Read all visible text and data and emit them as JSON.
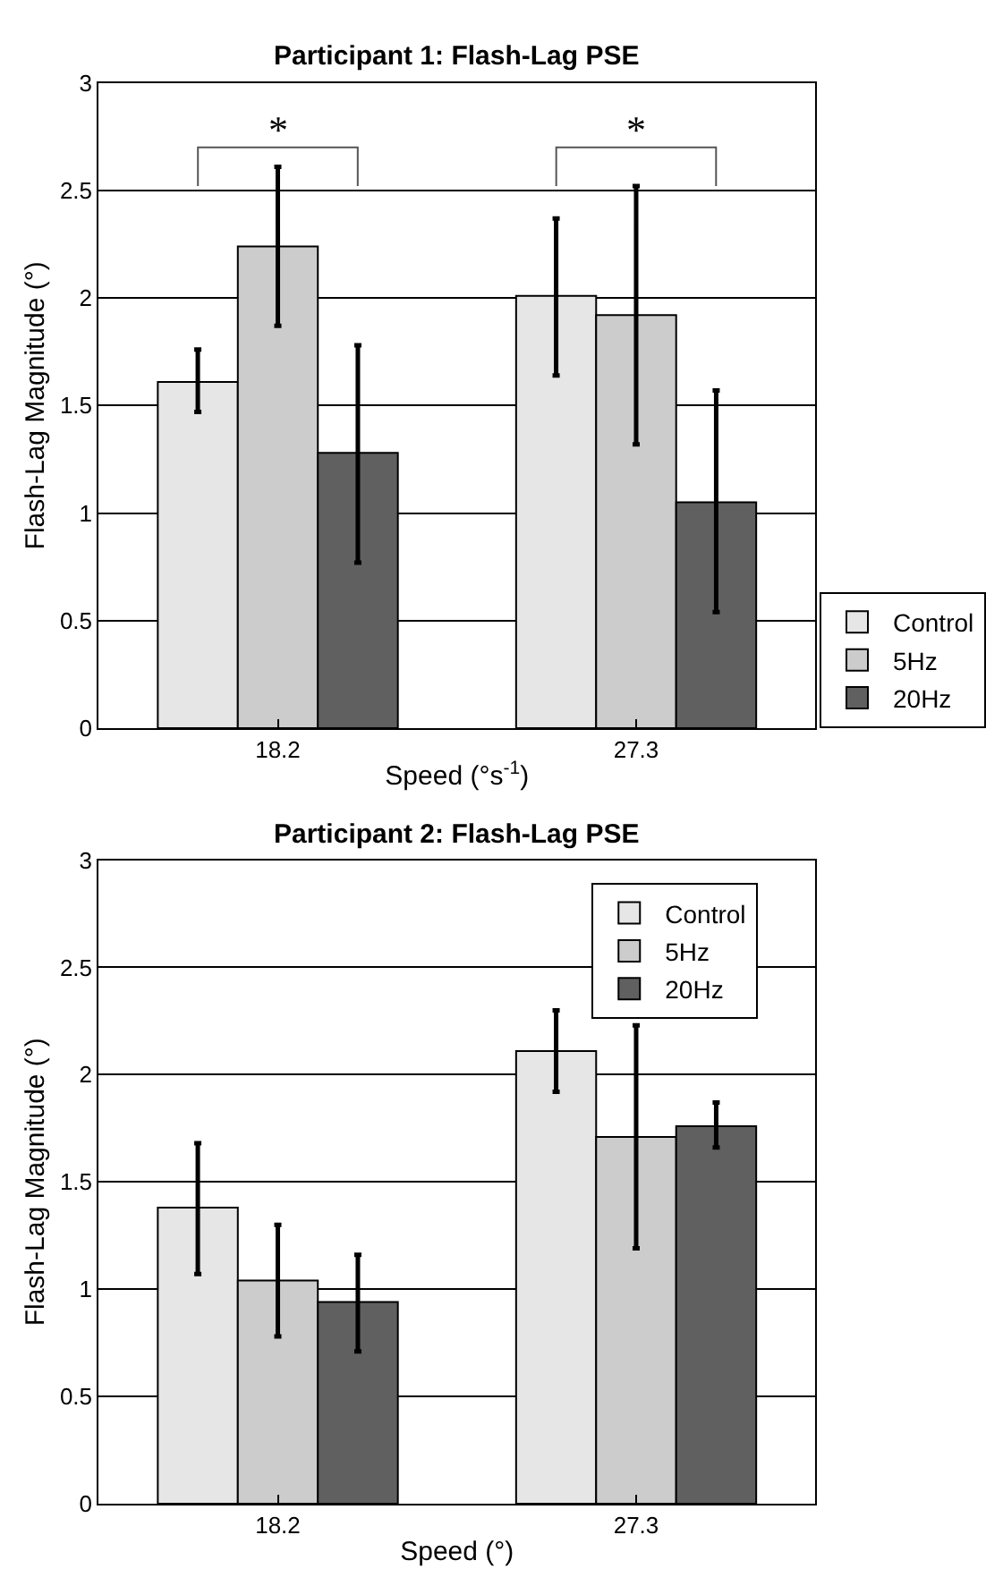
{
  "chart_data": [
    {
      "type": "bar",
      "title": "Participant 1: Flash-Lag PSE",
      "xlabel": "Speed (°s$^{-1}$)",
      "ylabel": "Flash-Lag Magnitude (°)",
      "categories": [
        "18.2",
        "27.3"
      ],
      "series": [
        {
          "name": "Control",
          "color": "#e6e6e6",
          "values": [
            1.61,
            2.01
          ],
          "errors": [
            [
              1.47,
              1.76
            ],
            [
              1.64,
              2.37
            ]
          ]
        },
        {
          "name": "5Hz",
          "color": "#cccccc",
          "values": [
            2.24,
            1.92
          ],
          "errors": [
            [
              1.87,
              2.61
            ],
            [
              1.32,
              2.52
            ]
          ]
        },
        {
          "name": "20Hz",
          "color": "#606060",
          "values": [
            1.28,
            1.05
          ],
          "errors": [
            [
              0.77,
              1.78
            ],
            [
              0.54,
              1.57
            ]
          ]
        }
      ],
      "ylim": [
        0,
        3
      ],
      "yticks": [
        0,
        0.5,
        1,
        1.5,
        2,
        2.5,
        3
      ],
      "grid": "y",
      "legend": "bottom right",
      "annotations": [
        "*",
        "*"
      ]
    },
    {
      "type": "bar",
      "title": "Participant 2: Flash-Lag PSE",
      "xlabel": "Speed (°)",
      "ylabel": "Flash-Lag Magnitude (°)",
      "categories": [
        "18.2",
        "27.3"
      ],
      "series": [
        {
          "name": "Control",
          "color": "#e6e6e6",
          "values": [
            1.38,
            2.11
          ],
          "errors": [
            [
              1.07,
              1.68
            ],
            [
              1.92,
              2.3
            ]
          ]
        },
        {
          "name": "5Hz",
          "color": "#cccccc",
          "values": [
            1.04,
            1.71
          ],
          "errors": [
            [
              0.78,
              1.3
            ],
            [
              1.19,
              2.23
            ]
          ]
        },
        {
          "name": "20Hz",
          "color": "#606060",
          "values": [
            0.94,
            1.76
          ],
          "errors": [
            [
              0.71,
              1.16
            ],
            [
              1.66,
              1.87
            ]
          ]
        }
      ],
      "ylim": [
        0,
        3
      ],
      "yticks": [
        0,
        0.5,
        1,
        1.5,
        2,
        2.5,
        3
      ],
      "grid": "y",
      "legend": "top right"
    }
  ]
}
